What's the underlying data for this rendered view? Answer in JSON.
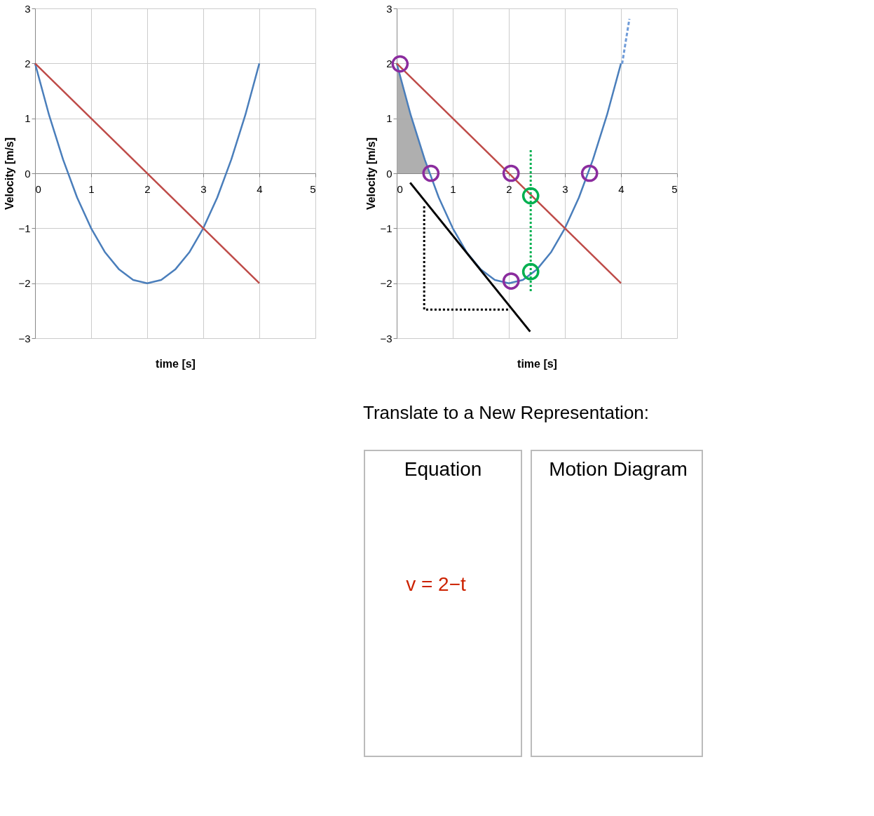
{
  "chart_data": [
    {
      "type": "line",
      "xlabel": "time [s]",
      "ylabel": "Velocity [m/s]",
      "xlim": [
        0,
        5
      ],
      "ylim": [
        -3,
        3
      ],
      "xticks": [
        0,
        1,
        2,
        3,
        4,
        5
      ],
      "yticks": [
        -3,
        -2,
        -1,
        0,
        1,
        2,
        3
      ],
      "grid": true,
      "marker": "none",
      "line_style": "solid",
      "series": [
        {
          "color": "#4a7ebb",
          "x": [
            0,
            0.25,
            0.5,
            0.75,
            1,
            1.25,
            1.5,
            1.75,
            2,
            2.25,
            2.5,
            2.75,
            3,
            3.25,
            3.5,
            3.75,
            4
          ],
          "values": [
            2,
            1.06,
            0.25,
            -0.44,
            -1,
            -1.44,
            -1.75,
            -1.94,
            -2,
            -1.94,
            -1.75,
            -1.44,
            -1,
            -0.44,
            0.25,
            1.06,
            2
          ]
        },
        {
          "color": "#be4b48",
          "x": [
            0,
            4
          ],
          "values": [
            2,
            -2
          ]
        }
      ]
    },
    {
      "type": "line",
      "xlabel": "time [s]",
      "ylabel": "Velocity [m/s]",
      "xlim": [
        0,
        5
      ],
      "ylim": [
        -3,
        3
      ],
      "xticks": [
        0,
        1,
        2,
        3,
        4,
        5
      ],
      "yticks": [
        -3,
        -2,
        -1,
        0,
        1,
        2,
        3
      ],
      "grid": true,
      "marker": "none",
      "line_style": "solid",
      "series": [
        {
          "type": "area",
          "color": "#a6a6a6",
          "x": [
            0,
            0.25,
            0.5,
            0.59
          ],
          "values": [
            2,
            1.06,
            0.25,
            0
          ]
        },
        {
          "color": "#4a7ebb",
          "x": [
            0,
            0.25,
            0.5,
            0.75,
            1,
            1.25,
            1.5,
            1.75,
            2,
            2.25,
            2.5,
            2.75,
            3,
            3.25,
            3.5,
            3.75,
            4
          ],
          "values": [
            2,
            1.06,
            0.25,
            -0.44,
            -1,
            -1.44,
            -1.75,
            -1.94,
            -2,
            -1.94,
            -1.75,
            -1.44,
            -1,
            -0.44,
            0.25,
            1.06,
            2
          ]
        },
        {
          "color": "#6f9bd8",
          "line_style": "dashed",
          "x": [
            4.02,
            4.15
          ],
          "values": [
            1.99,
            2.81
          ]
        },
        {
          "color": "#be4b48",
          "x": [
            0,
            4
          ],
          "values": [
            2,
            -2
          ]
        },
        {
          "color": "#00b050",
          "line_style": "dotted",
          "x": [
            2.39,
            2.39
          ],
          "values": [
            0.42,
            -2.15
          ]
        },
        {
          "color": "#000000",
          "x": [
            0.24,
            2.38
          ],
          "values": [
            -0.17,
            -2.88
          ]
        },
        {
          "color": "#000000",
          "line_style": "dotted",
          "x": [
            0.49,
            0.49,
            2.01
          ],
          "values": [
            -0.6,
            -2.48,
            -2.48
          ]
        },
        {
          "type": "scatter",
          "marker": "circle",
          "color": "#8b2c9e",
          "x": [
            0.06,
            0.61,
            2.04,
            3.44,
            2.04
          ],
          "values": [
            1.99,
            0,
            0,
            0,
            -1.96
          ]
        },
        {
          "type": "scatter",
          "marker": "circle",
          "color": "#00b050",
          "x": [
            2.39,
            2.39
          ],
          "values": [
            -0.41,
            -1.79
          ]
        }
      ]
    },
    {
      "type": "other",
      "title": "Translate to a New Representation:",
      "annotations": [
        "Equation",
        "Motion Diagram",
        "v = 2−t"
      ]
    }
  ]
}
